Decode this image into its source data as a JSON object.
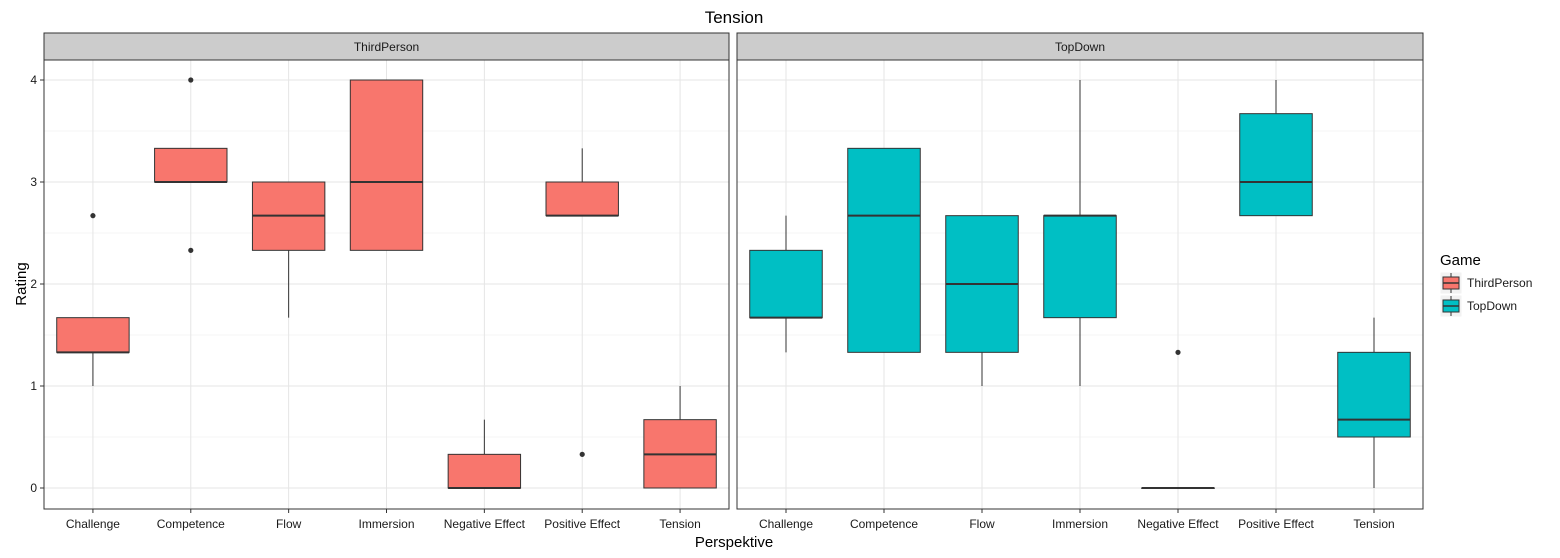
{
  "chart_data": {
    "type": "boxplot",
    "title": "Tension",
    "xlabel": "Perspektive",
    "ylabel": "Rating",
    "ylim": [
      -0.2,
      4.2
    ],
    "yticks": [
      0,
      1,
      2,
      3,
      4
    ],
    "categories": [
      "Challenge",
      "Competence",
      "Flow",
      "Immersion",
      "Negative Effect",
      "Positive Effect",
      "Tension"
    ],
    "grid": true,
    "legend": {
      "title": "Game",
      "position": "right",
      "entries": [
        {
          "name": "ThirdPerson",
          "color": "#F8766D"
        },
        {
          "name": "TopDown",
          "color": "#00BFC4"
        }
      ]
    },
    "facets": [
      {
        "label": "ThirdPerson",
        "color": "#F8766D",
        "boxes": [
          {
            "category": "Challenge",
            "min": 1.0,
            "q1": 1.33,
            "median": 1.33,
            "q3": 1.67,
            "max": 1.67,
            "outliers": [
              2.67
            ]
          },
          {
            "category": "Competence",
            "min": 3.0,
            "q1": 3.0,
            "median": 3.0,
            "q3": 3.33,
            "max": 3.33,
            "outliers": [
              4.0,
              2.33
            ]
          },
          {
            "category": "Flow",
            "min": 1.67,
            "q1": 2.33,
            "median": 2.67,
            "q3": 3.0,
            "max": 3.0,
            "outliers": []
          },
          {
            "category": "Immersion",
            "min": 2.33,
            "q1": 2.33,
            "median": 3.0,
            "q3": 4.0,
            "max": 4.0,
            "outliers": []
          },
          {
            "category": "Negative Effect",
            "min": 0.0,
            "q1": 0.0,
            "median": 0.0,
            "q3": 0.33,
            "max": 0.67,
            "outliers": []
          },
          {
            "category": "Positive Effect",
            "min": 2.67,
            "q1": 2.67,
            "median": 2.67,
            "q3": 3.0,
            "max": 3.33,
            "outliers": [
              0.33
            ]
          },
          {
            "category": "Tension",
            "min": 0.0,
            "q1": 0.0,
            "median": 0.33,
            "q3": 0.67,
            "max": 1.0,
            "outliers": []
          }
        ]
      },
      {
        "label": "TopDown",
        "color": "#00BFC4",
        "boxes": [
          {
            "category": "Challenge",
            "min": 1.33,
            "q1": 1.67,
            "median": 1.67,
            "q3": 2.33,
            "max": 2.67,
            "outliers": []
          },
          {
            "category": "Competence",
            "min": 1.33,
            "q1": 1.33,
            "median": 2.67,
            "q3": 3.33,
            "max": 3.33,
            "outliers": []
          },
          {
            "category": "Flow",
            "min": 1.0,
            "q1": 1.33,
            "median": 2.0,
            "q3": 2.67,
            "max": 2.67,
            "outliers": []
          },
          {
            "category": "Immersion",
            "min": 1.0,
            "q1": 1.67,
            "median": 2.67,
            "q3": 2.67,
            "max": 4.0,
            "outliers": []
          },
          {
            "category": "Negative Effect",
            "min": 0.0,
            "q1": 0.0,
            "median": 0.0,
            "q3": 0.0,
            "max": 0.0,
            "outliers": [
              1.33
            ]
          },
          {
            "category": "Positive Effect",
            "min": 2.67,
            "q1": 2.67,
            "median": 3.0,
            "q3": 3.67,
            "max": 4.0,
            "outliers": []
          },
          {
            "category": "Tension",
            "min": 0.0,
            "q1": 0.5,
            "median": 0.67,
            "q3": 1.33,
            "max": 1.67,
            "outliers": []
          }
        ]
      }
    ]
  }
}
